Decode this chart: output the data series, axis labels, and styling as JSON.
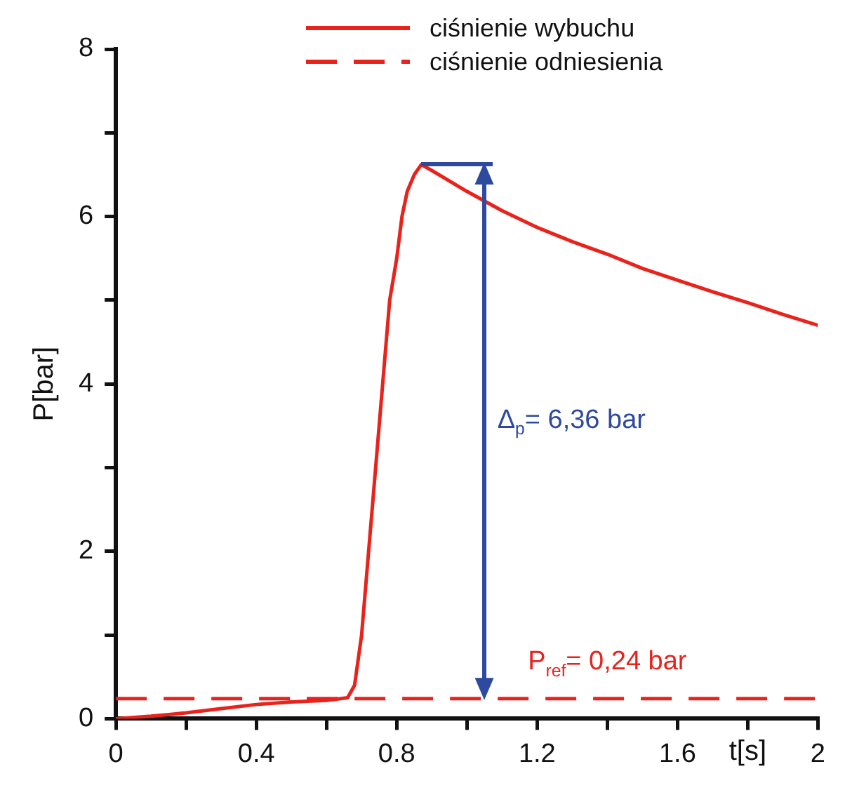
{
  "chart_data": {
    "type": "line",
    "xlabel": "t[s]",
    "ylabel": "P[bar]",
    "xlim": [
      0,
      2
    ],
    "xticks": [
      0,
      {
        "value": 0.2,
        "label": null
      },
      0.4,
      {
        "value": 0.6,
        "label": null
      },
      0.8,
      {
        "value": 1,
        "label": null
      },
      1.2,
      {
        "value": 1.4,
        "label": null
      },
      1.6,
      {
        "value": 1.8,
        "label": null
      },
      2
    ],
    "ylim": [
      0,
      8
    ],
    "yticks": [
      0,
      {
        "value": 1,
        "label": null
      },
      2,
      {
        "value": 3,
        "label": null
      },
      4,
      {
        "value": 5,
        "label": null
      },
      6,
      {
        "value": 7,
        "label": null
      },
      8
    ],
    "grid": false,
    "legend": "top",
    "marker": "none",
    "series": [
      {
        "name": "ciśnienie wybuchu",
        "color": "#e8231c",
        "line_style": "solid",
        "x": [
          0,
          0.1,
          0.2,
          0.3,
          0.4,
          0.5,
          0.6,
          0.66,
          0.68,
          0.7,
          0.72,
          0.74,
          0.76,
          0.78,
          0.8,
          0.815,
          0.83,
          0.85,
          0.87,
          0.9,
          1,
          1.1,
          1.2,
          1.3,
          1.4,
          1.5,
          1.6,
          1.7,
          1.8,
          1.9,
          2
        ],
        "values": [
          0,
          0.03,
          0.07,
          0.12,
          0.17,
          0.2,
          0.22,
          0.25,
          0.4,
          1,
          2,
          3,
          4,
          5,
          5.5,
          6,
          6.3,
          6.5,
          6.62,
          6.55,
          6.3,
          6.07,
          5.87,
          5.7,
          5.55,
          5.38,
          5.24,
          5.1,
          4.97,
          4.83,
          4.7
        ]
      },
      {
        "name": "ciśnienie odniesienia",
        "color": "#e8231c",
        "line_style": "dashed",
        "x": [
          0,
          2
        ],
        "values": [
          0.24,
          0.24
        ]
      }
    ],
    "annotations": [
      "Δ$_{p}$= 6,36 bar",
      "P$_{ref}$= 0,24 bar"
    ]
  }
}
